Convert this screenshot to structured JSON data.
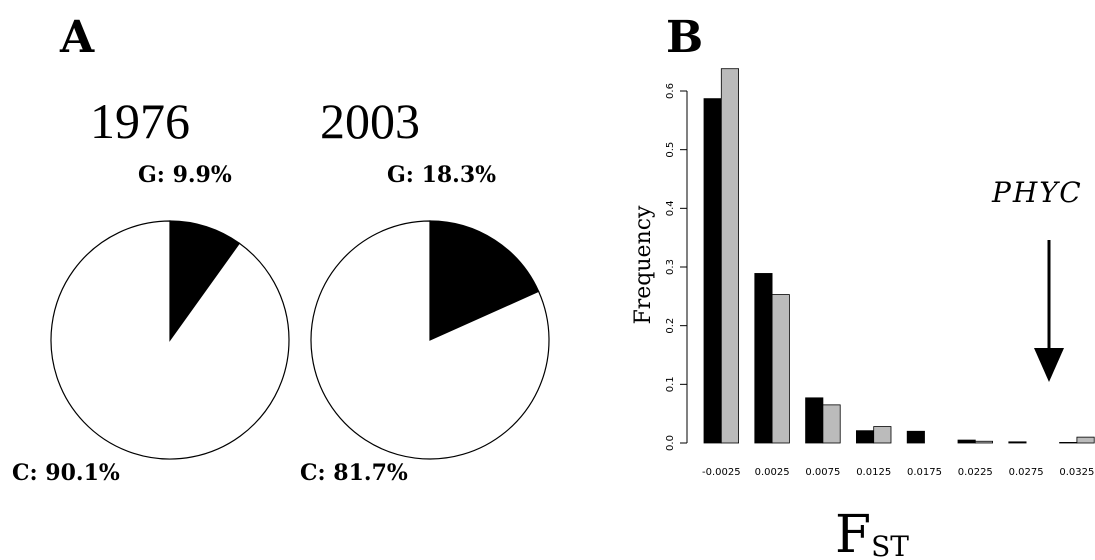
{
  "panels": {
    "a": "A",
    "b": "B"
  },
  "chart_data": [
    {
      "type": "pie",
      "title": "1976",
      "slices": [
        {
          "label": "G",
          "display": "G: 9.9%",
          "value": 9.9,
          "color": "#000000"
        },
        {
          "label": "C",
          "display": "C: 90.1%",
          "value": 90.1,
          "color": "#ffffff"
        }
      ]
    },
    {
      "type": "pie",
      "title": "2003",
      "slices": [
        {
          "label": "G",
          "display": "G: 18.3%",
          "value": 18.3,
          "color": "#000000"
        },
        {
          "label": "C",
          "display": "C: 81.7%",
          "value": 81.7,
          "color": "#ffffff"
        }
      ]
    },
    {
      "type": "bar",
      "categories": [
        "-0.0025",
        "0.0025",
        "0.0075",
        "0.0125",
        "0.0175",
        "0.0225",
        "0.0275",
        "0.0325"
      ],
      "series": [
        {
          "color": "#000000",
          "values": [
            0.587,
            0.289,
            0.077,
            0.021,
            0.02,
            0.005,
            0.002,
            0.001
          ]
        },
        {
          "color": "#bbbbbb",
          "values": [
            0.638,
            0.253,
            0.065,
            0.028,
            0.0,
            0.003,
            0.0,
            0.01
          ]
        }
      ],
      "ylabel": "Frequency",
      "xlabel": "F",
      "xlabel_sub": "ST",
      "yticks": [
        "0.0",
        "0.1",
        "0.2",
        "0.3",
        "0.4",
        "0.5",
        "0.6"
      ],
      "ylim": [
        0,
        0.6
      ],
      "annotation": "PHYC",
      "grid": false
    }
  ]
}
